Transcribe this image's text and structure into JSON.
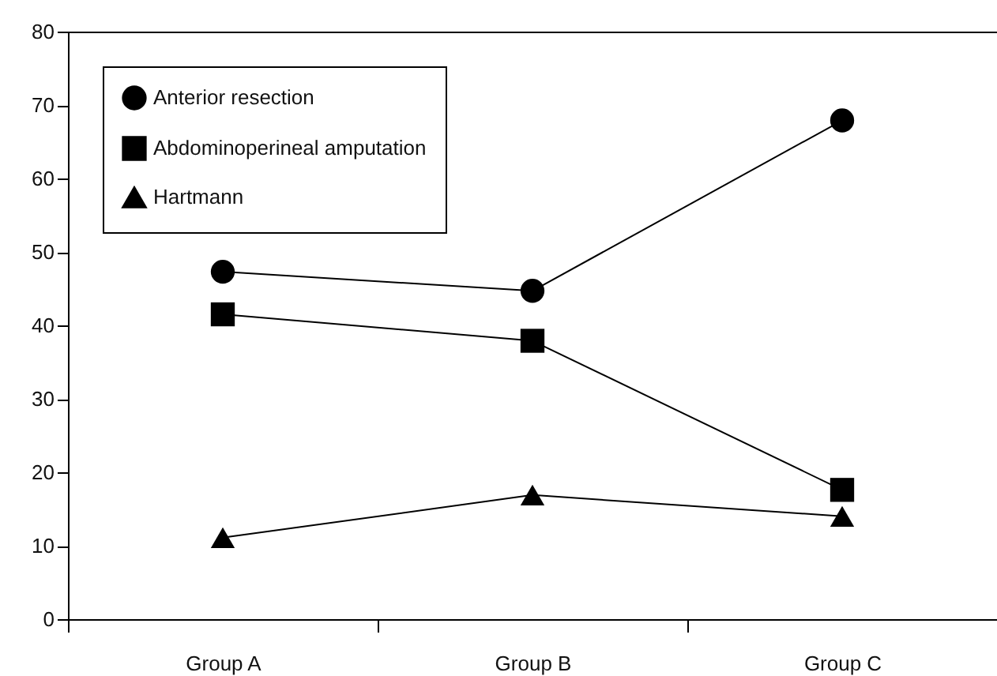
{
  "chart_data": {
    "type": "line",
    "categories": [
      "Group A",
      "Group B",
      "Group C"
    ],
    "series": [
      {
        "name": "Anterior resection",
        "color": "#000000",
        "marker": "circle",
        "values": [
          47.3,
          44.7,
          67.9
        ]
      },
      {
        "name": "Abdominoperineal amputation",
        "color": "#000000",
        "marker": "square",
        "values": [
          41.5,
          37.9,
          17.6
        ]
      },
      {
        "name": "Hartmann",
        "color": "#000000",
        "marker": "triangle",
        "values": [
          11.1,
          16.9,
          14.0
        ]
      }
    ],
    "ylim": [
      0,
      80
    ],
    "yticks": [
      0,
      10,
      20,
      30,
      40,
      50,
      60,
      70,
      80
    ],
    "grid": false,
    "legend": "top left",
    "line_style": "solid"
  }
}
